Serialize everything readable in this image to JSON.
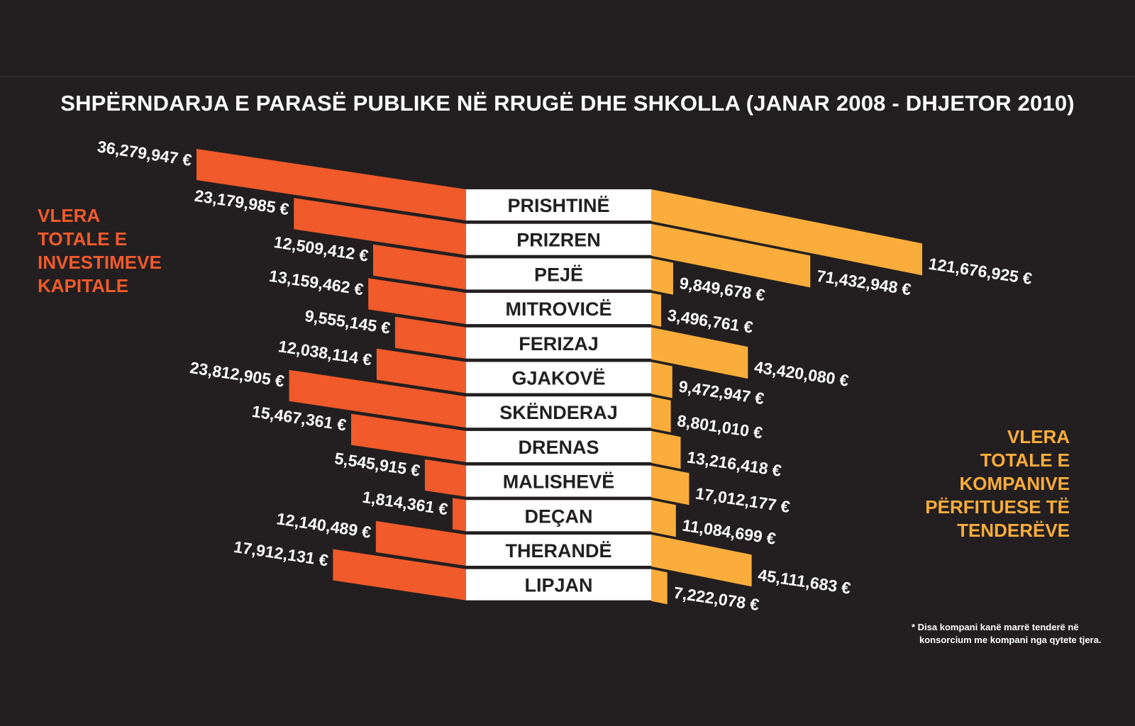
{
  "title": "SHPËRNDARJA E PARASË PUBLIKE NË RRUGË DHE SHKOLLA (JANAR 2008 - DHJETOR 2010)",
  "left_label": [
    "VLERA",
    "TOTALE E",
    "INVESTIMEVE",
    "KAPITALE"
  ],
  "right_label": [
    "VLERA",
    "TOTALE E",
    "KOMPANIVE",
    "PËRFITUESE TË",
    "TENDERËVE"
  ],
  "footnote": [
    "* Disa kompani kanë marrë tenderë në",
    "konsorcium me kompani nga qytete tjera."
  ],
  "colors": {
    "background": "#231f20",
    "left": "#f15a2b",
    "right": "#fbad3b",
    "label_box": "#ffffff",
    "text": "#ffffff"
  },
  "chart_data": {
    "type": "bar",
    "categories": [
      "PRISHTINË",
      "PRIZREN",
      "PEJË",
      "MITROVICË",
      "FERIZAJ",
      "GJAKOVË",
      "SKËNDERAJ",
      "DRENAS",
      "MALISHEVË",
      "DEÇAN",
      "THERANDË",
      "LIPJAN"
    ],
    "series": [
      {
        "values": [
          36279947,
          23179985,
          12509412,
          13159462,
          9555145,
          12038114,
          23812905,
          15467361,
          5545915,
          1814361,
          12140489,
          17912131
        ],
        "labels": [
          "36,279,947 €",
          "23,179,985 €",
          "12,509,412 €",
          "13,159,462 €",
          "9,555,145 €",
          "12,038,114 €",
          "23,812,905 €",
          "15,467,361 €",
          "5,545,915 €",
          "1,814,361 €",
          "12,140,489 €",
          "17,912,131 €"
        ]
      },
      {
        "values": [
          121676925,
          71432948,
          9849678,
          3496761,
          43420080,
          9472947,
          8801010,
          13216418,
          17012177,
          11084699,
          45111683,
          7222078
        ],
        "labels": [
          "121,676,925 €",
          "71,432,948 €",
          "9,849,678 €",
          "3,496,761 €",
          "43,420,080 €",
          "9,472,947 €",
          "8,801,010 €",
          "13,216,418 €",
          "17,012,177 €",
          "11,084,699 €",
          "45,111,683 €",
          "7,222,078 €"
        ]
      }
    ]
  }
}
